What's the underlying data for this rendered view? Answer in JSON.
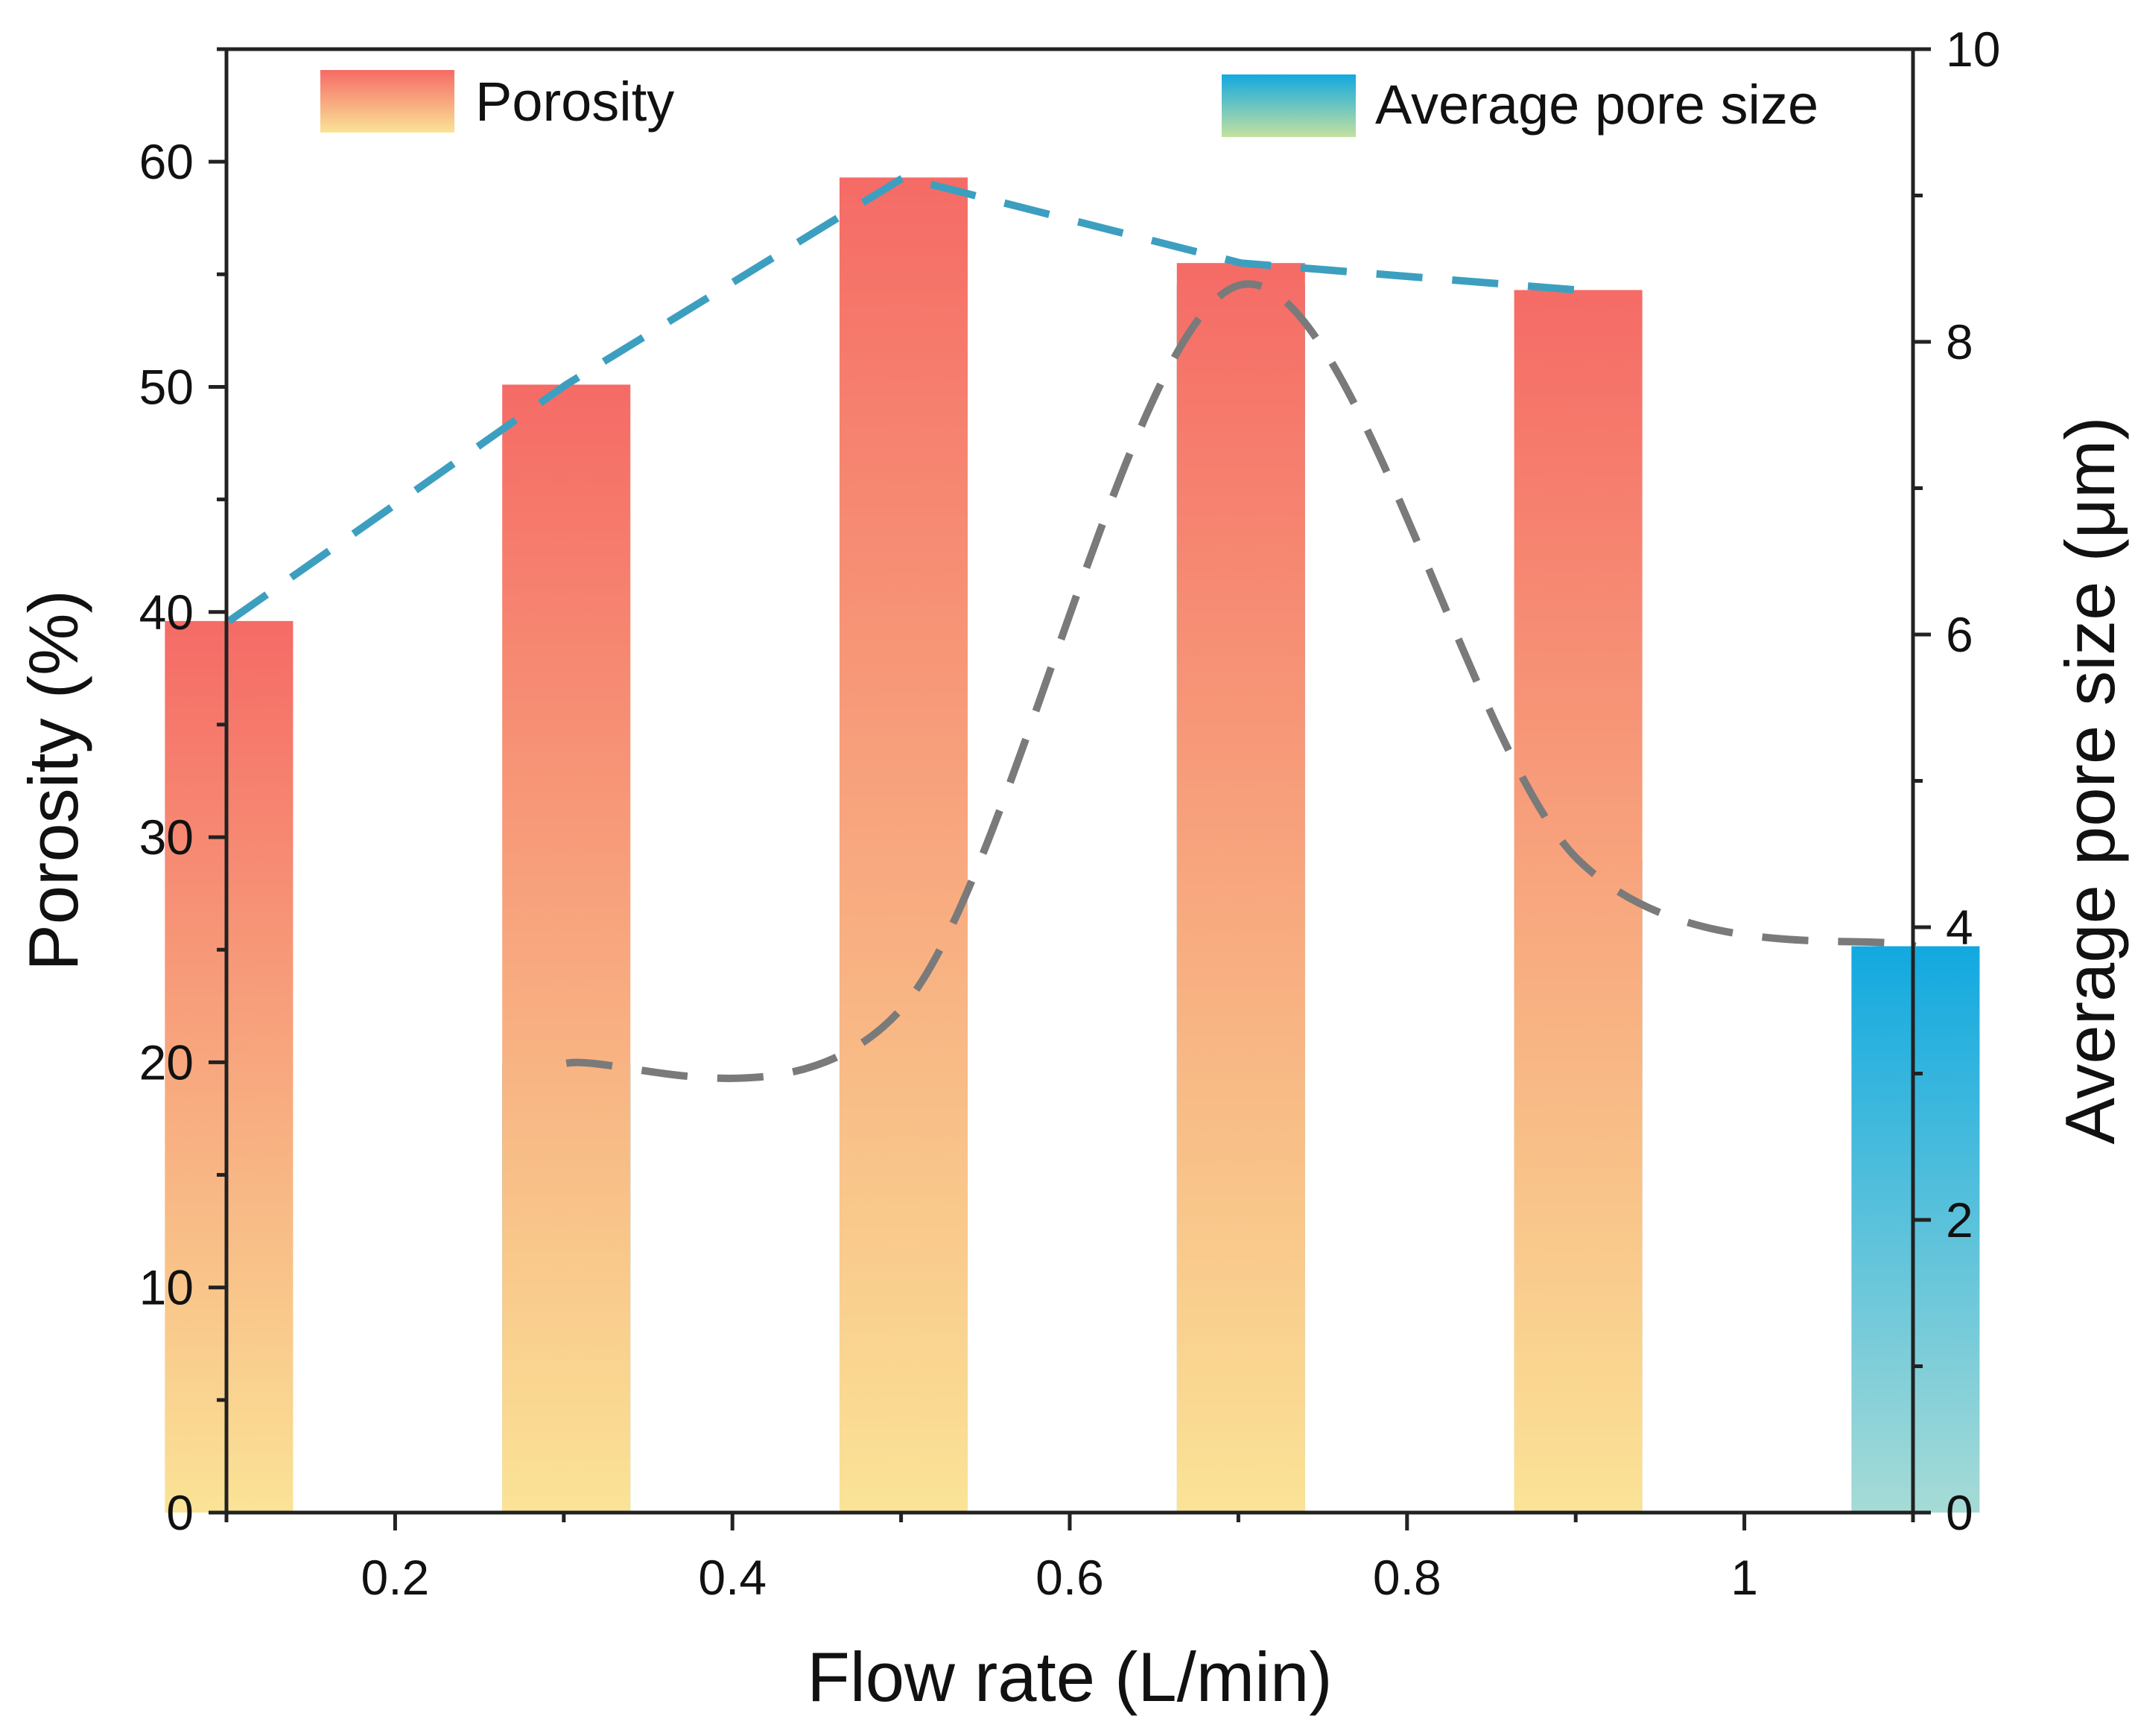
{
  "chart_data": {
    "type": "bar",
    "xlabel": "Flow rate (L/min)",
    "ylabel_left": "Porosity (%)",
    "ylabel_right": "Average pore size (μm)",
    "categories": [
      "0.2",
      "0.4",
      "0.6",
      "0.8",
      "1"
    ],
    "x_values": [
      0.2,
      0.4,
      0.6,
      0.8,
      1.0
    ],
    "xlim": [
      0.1,
      1.1
    ],
    "ylim_left": [
      0,
      65
    ],
    "ylim_right": [
      0,
      10
    ],
    "yticks_left": [
      0,
      10,
      20,
      30,
      40,
      50,
      60
    ],
    "yticks_right": [
      0,
      2,
      4,
      6,
      8,
      10
    ],
    "grid": false,
    "series": [
      {
        "name": "Porosity",
        "axis": "left",
        "kind": "bar",
        "values": [
          39.6,
          50.1,
          59.3,
          55.5,
          54.3
        ],
        "gradient": [
          "#f56b66",
          "#fae396"
        ],
        "trend_color": "#3d9fbf",
        "trend_style": "dashed"
      },
      {
        "name": "Average pore size",
        "axis": "right",
        "kind": "bar",
        "values": [
          3.07,
          3.46,
          8.39,
          4.46,
          3.87
        ],
        "gradient": [
          "#12a9e0",
          "#a6dbd6"
        ],
        "legend_gradient_bottom": "#c4e1a0",
        "trend_color": "#7a7a7a",
        "trend_style": "dashed"
      }
    ],
    "legend": [
      {
        "label": "Porosity",
        "position": "top-left"
      },
      {
        "label": "Average pore size",
        "position": "top-right"
      }
    ]
  }
}
